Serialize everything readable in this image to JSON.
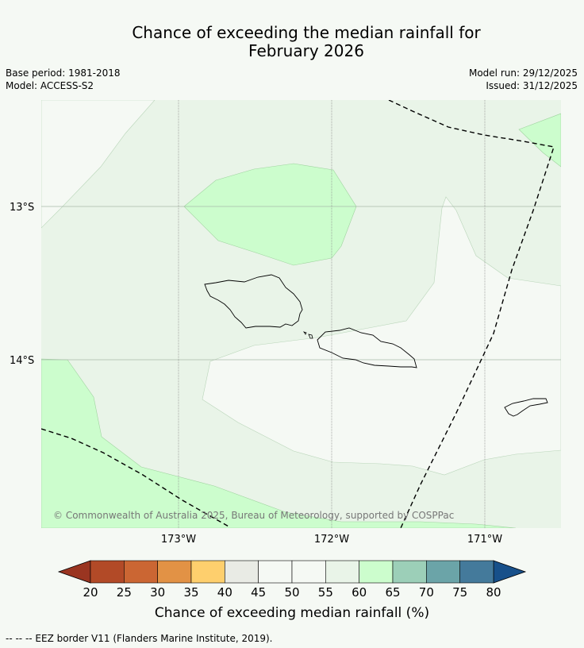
{
  "title": {
    "line1": "Chance of exceeding the median rainfall for",
    "line2": "February 2026"
  },
  "meta": {
    "base_period": "Base period: 1981-2018",
    "model": "Model: ACCESS-S2",
    "model_run": "Model run: 29/12/2025",
    "issued": "Issued: 31/12/2025"
  },
  "map": {
    "lat_labels": [
      "13°S",
      "14°S"
    ],
    "lon_labels": [
      "173°W",
      "172°W",
      "171°W"
    ],
    "copyright": "© Commonwealth of Australia 2025, Bureau of Meteorology, supported by COSPPac",
    "colors": {
      "ocean_background": "#f5f9f4",
      "band_55_60": "#e9f4e8",
      "band_60_65": "#ccfdcd",
      "band_50_55": "#f5f9f4"
    }
  },
  "colorbar": {
    "ticks": [
      "20",
      "25",
      "30",
      "35",
      "40",
      "45",
      "50",
      "55",
      "60",
      "65",
      "70",
      "75",
      "80"
    ],
    "colors": [
      "#b24a27",
      "#cb6633",
      "#e29245",
      "#fecf6d",
      "#e9ebe5",
      "#f5f9f4",
      "#f5f9f4",
      "#e9f4e8",
      "#ccfdcd",
      "#9ccfb8",
      "#6ba4a8",
      "#447a9b"
    ],
    "under_color": "#9a3521",
    "over_color": "#17508a",
    "label": "Chance of exceeding median rainfall (%)"
  },
  "footnote": "--  --  -- EEZ border V11 (Flanders Marine Institute, 2019)."
}
